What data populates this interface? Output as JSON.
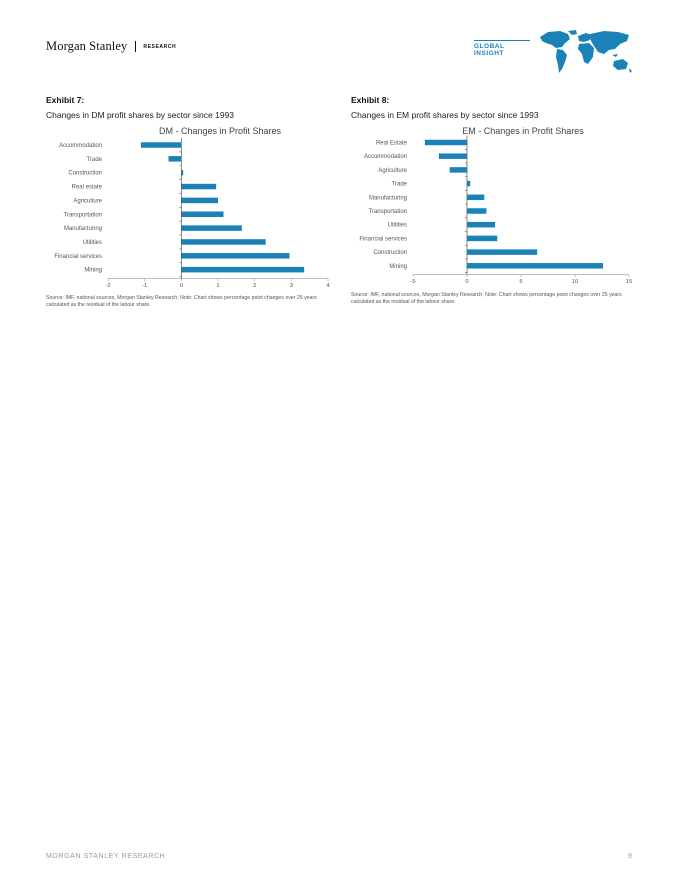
{
  "header": {
    "brand": "Morgan Stanley",
    "research_label": "RESEARCH",
    "global_insight": "GLOBAL INSIGHT",
    "map_color": "#1a82b6"
  },
  "exhibits": [
    {
      "label": "Exhibit 7:",
      "description": "Changes in DM profit shares by sector since 1993",
      "source": "Source: IMF, national sources, Morgan Stanley Research; Note: Chart shows percentage point changes over 25 years calculated as the residual of the labour share."
    },
    {
      "label": "Exhibit 8:",
      "description": "Changes in EM profit shares by sector since 1993",
      "source": "Source: IMF, national sources, Morgan Stanley Research; Note: Chart shows percentage point changes over 25 years calculated as the residual of the labour share."
    }
  ],
  "chart_data": [
    {
      "type": "bar",
      "orientation": "horizontal",
      "title": "DM - Changes in Profit Shares",
      "categories": [
        "Accommodation",
        "Trade",
        "Construction",
        "Real estate",
        "Agriculture",
        "Transportation",
        "Manufacturing",
        "Utilities",
        "Financial services",
        "Mining"
      ],
      "values": [
        -1.1,
        -0.35,
        0.05,
        0.95,
        1.0,
        1.15,
        1.65,
        2.3,
        2.95,
        3.35
      ],
      "xlim": [
        -2,
        4
      ],
      "xticks": [
        -2,
        -1,
        0,
        1,
        2,
        3,
        4
      ],
      "bar_color": "#1a82b6",
      "grid": false
    },
    {
      "type": "bar",
      "orientation": "horizontal",
      "title": "EM - Changes in Profit Shares",
      "categories": [
        "Real Estate",
        "Accommodation",
        "Agriculture",
        "Trade",
        "Manufacturing",
        "Transportation",
        "Utilities",
        "Financial services",
        "Construction",
        "Mining"
      ],
      "values": [
        -3.9,
        -2.6,
        -1.6,
        0.3,
        1.6,
        1.8,
        2.6,
        2.8,
        6.5,
        12.6
      ],
      "xlim": [
        -5,
        15
      ],
      "xticks": [
        -5,
        0,
        5,
        10,
        15
      ],
      "bar_color": "#1a82b6",
      "grid": false
    }
  ],
  "footer": {
    "left": "MORGAN STANLEY RESEARCH",
    "page_number": "9"
  }
}
